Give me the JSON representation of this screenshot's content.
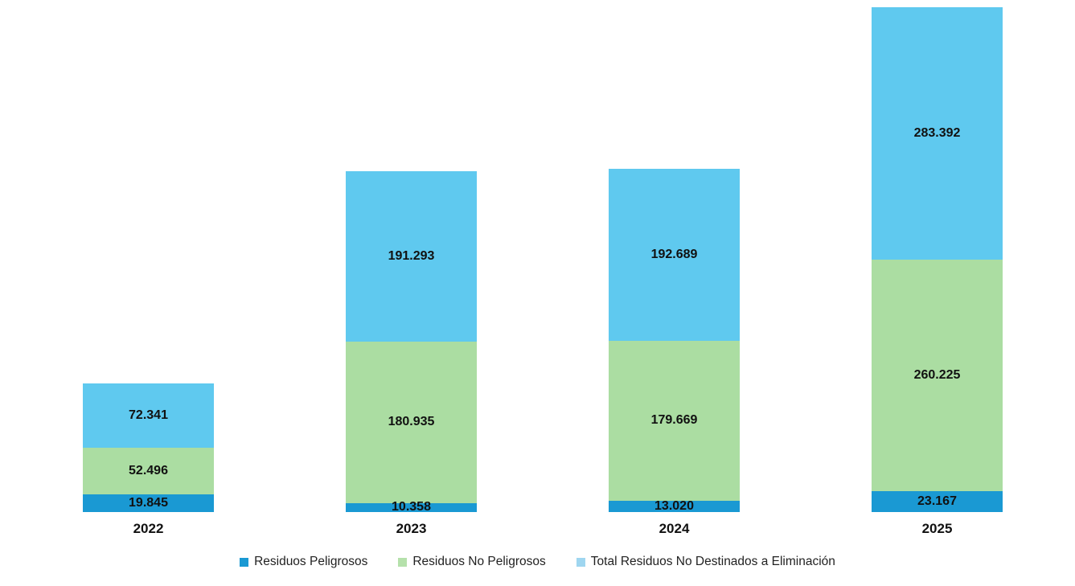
{
  "chart_data": {
    "type": "bar",
    "stacked": true,
    "title": "",
    "xlabel": "",
    "ylabel": "",
    "categories": [
      "2022",
      "2023",
      "2024",
      "2025"
    ],
    "series": [
      {
        "name": "Residuos Peligrosos",
        "color": "#1A99D3",
        "legend_color": "#1A99D3",
        "values": [
          19845,
          10358,
          13020,
          23167
        ],
        "labels": [
          "19.845",
          "10.358",
          "13.020",
          "23.167"
        ]
      },
      {
        "name": "Residuos No Peligrosos",
        "color": "#ABDDA2",
        "legend_color": "#B5E1AB",
        "values": [
          52496,
          180935,
          179669,
          260225
        ],
        "labels": [
          "52.496",
          "180.935",
          "179.669",
          "260.225"
        ]
      },
      {
        "name": "Total Residuos No Destinados a Eliminación",
        "color": "#5FC9EF",
        "legend_color": "#9FD6F0",
        "values": [
          72341,
          191293,
          192689,
          283392
        ],
        "labels": [
          "72.341",
          "191.293",
          "192.689",
          "283.392"
        ]
      }
    ],
    "totals": [
      144682,
      382586,
      385378,
      566784
    ],
    "ylim": [
      0,
      566784
    ],
    "grid": false,
    "axes_visible": false,
    "legend_position": "bottom",
    "background": "#ffffff",
    "label_color": "#111111"
  }
}
